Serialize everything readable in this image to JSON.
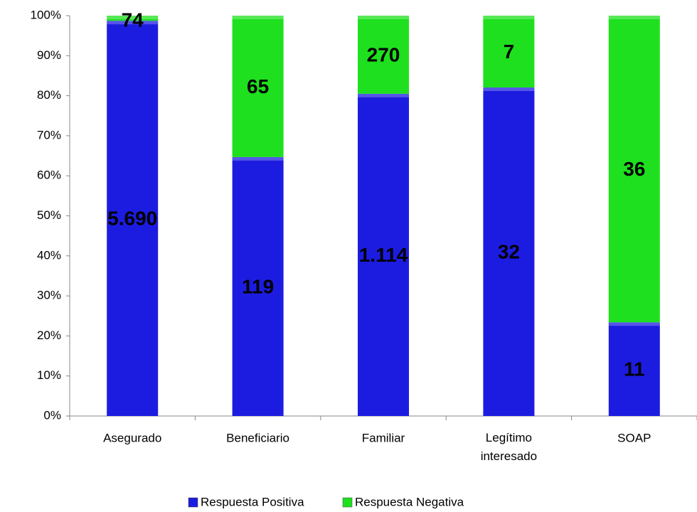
{
  "chart_data": {
    "type": "bar",
    "stacking": "percent",
    "categories": [
      "Asegurado",
      "Beneficiario",
      "Familiar",
      "Legítimo interesado",
      "SOAP"
    ],
    "series": [
      {
        "name": "Respuesta Positiva",
        "color": "#1c1ce0",
        "values": [
          5690,
          119,
          1114,
          32,
          11
        ],
        "value_labels": [
          "5.690",
          "119",
          "1.114",
          "32",
          "11"
        ]
      },
      {
        "name": "Respuesta Negativa",
        "color": "#1ee01e",
        "values": [
          74,
          65,
          270,
          7,
          36
        ],
        "value_labels": [
          "74",
          "65",
          "270",
          "7",
          "36"
        ]
      }
    ],
    "ylim": [
      0,
      100
    ],
    "yticks": [
      {
        "value": 0,
        "label": "0%"
      },
      {
        "value": 10,
        "label": "10%"
      },
      {
        "value": 20,
        "label": "20%"
      },
      {
        "value": 30,
        "label": "30%"
      },
      {
        "value": 40,
        "label": "40%"
      },
      {
        "value": 50,
        "label": "50%"
      },
      {
        "value": 60,
        "label": "60%"
      },
      {
        "value": 70,
        "label": "70%"
      },
      {
        "value": 80,
        "label": "80%"
      },
      {
        "value": 90,
        "label": "90%"
      },
      {
        "value": 100,
        "label": "100%"
      }
    ],
    "grid": false,
    "legend": "bottom"
  }
}
